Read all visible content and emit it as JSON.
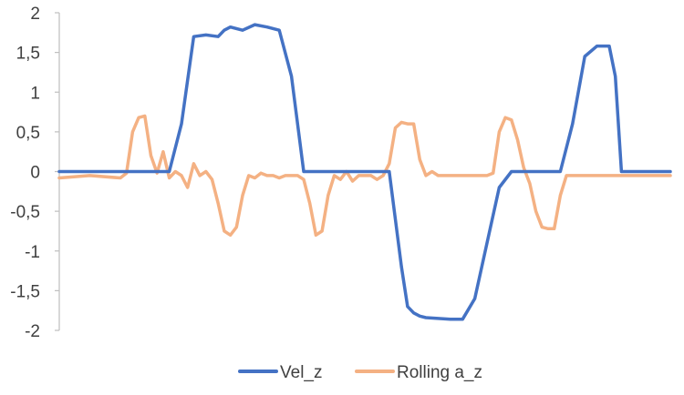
{
  "chart_data": {
    "type": "line",
    "title": "",
    "xlabel": "",
    "ylabel": "",
    "ylim": [
      -2,
      2
    ],
    "y_ticks": [
      2,
      1.5,
      1,
      0.5,
      0,
      -0.5,
      -1,
      -1.5,
      -2
    ],
    "y_tick_labels": [
      "2",
      "1,5",
      "1",
      "0,5",
      "0",
      "-0,5",
      "-1",
      "-1,5",
      "-2"
    ],
    "x_ticks_shown": false,
    "grid": false,
    "legend_position": "bottom",
    "series": [
      {
        "name": "Vel_z",
        "color": "#4472C4",
        "x": [
          0,
          10,
          18,
          20,
          22,
          24,
          26,
          27,
          28,
          30,
          32,
          34,
          36,
          38,
          40,
          42,
          44,
          46,
          48,
          50,
          52,
          54,
          55,
          56,
          57,
          58,
          59,
          60,
          62,
          64,
          66,
          68,
          70,
          72,
          74,
          76,
          77,
          78,
          79,
          80,
          81,
          82,
          84,
          86,
          88,
          90,
          91,
          92,
          94,
          96,
          98,
          99,
          100
        ],
        "y": [
          0,
          0,
          0,
          0.6,
          1.7,
          1.72,
          1.7,
          1.78,
          1.82,
          1.78,
          1.85,
          1.82,
          1.78,
          1.2,
          0,
          0,
          0,
          0,
          0,
          0,
          0,
          0,
          -0.6,
          -1.2,
          -1.7,
          -1.78,
          -1.82,
          -1.84,
          -1.85,
          -1.86,
          -1.86,
          -1.6,
          -0.9,
          -0.2,
          0,
          0,
          0,
          0,
          0,
          0,
          0,
          0,
          0.6,
          1.45,
          1.58,
          1.58,
          1.2,
          0,
          0,
          0,
          0,
          0,
          0
        ]
      },
      {
        "name": "Rolling a_z",
        "color": "#F4B183",
        "x": [
          0,
          5,
          10,
          11,
          12,
          13,
          14,
          15,
          16,
          17,
          18,
          19,
          20,
          21,
          22,
          23,
          24,
          25,
          26,
          27,
          28,
          29,
          30,
          31,
          32,
          33,
          34,
          35,
          36,
          37,
          38,
          39,
          40,
          41,
          42,
          43,
          44,
          45,
          46,
          47,
          48,
          49,
          50,
          51,
          52,
          53,
          54,
          55,
          56,
          57,
          58,
          59,
          60,
          61,
          62,
          63,
          64,
          65,
          66,
          67,
          68,
          69,
          70,
          71,
          72,
          73,
          74,
          75,
          76,
          77,
          78,
          79,
          80,
          81,
          82,
          83,
          84,
          85,
          86,
          87,
          88,
          89,
          90,
          91,
          92,
          93,
          94,
          95,
          96,
          97,
          98,
          99,
          100
        ],
        "y": [
          -0.08,
          -0.05,
          -0.08,
          -0.02,
          0.5,
          0.68,
          0.7,
          0.2,
          -0.02,
          0.25,
          -0.08,
          0.0,
          -0.05,
          -0.2,
          0.1,
          -0.05,
          0.0,
          -0.1,
          -0.4,
          -0.75,
          -0.8,
          -0.7,
          -0.3,
          -0.05,
          -0.08,
          -0.02,
          -0.05,
          -0.05,
          -0.08,
          -0.05,
          -0.05,
          -0.05,
          -0.1,
          -0.4,
          -0.8,
          -0.75,
          -0.3,
          -0.05,
          -0.1,
          0.0,
          -0.12,
          -0.05,
          -0.05,
          -0.05,
          -0.1,
          -0.05,
          0.1,
          0.55,
          0.62,
          0.6,
          0.6,
          0.15,
          -0.05,
          0.0,
          -0.05,
          -0.05,
          -0.05,
          -0.05,
          -0.05,
          -0.05,
          -0.05,
          -0.05,
          -0.05,
          -0.02,
          0.5,
          0.68,
          0.65,
          0.4,
          0.05,
          -0.15,
          -0.5,
          -0.7,
          -0.72,
          -0.72,
          -0.3,
          -0.05,
          -0.05,
          -0.05,
          -0.05,
          -0.05,
          -0.05,
          -0.05,
          -0.05,
          -0.05,
          -0.05,
          -0.05,
          -0.05,
          -0.05,
          -0.05,
          -0.05,
          -0.05,
          -0.05,
          -0.05
        ]
      }
    ]
  }
}
